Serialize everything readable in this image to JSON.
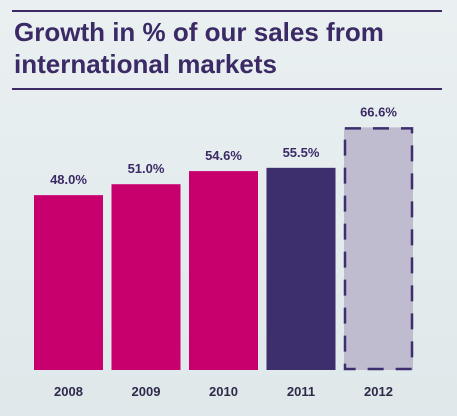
{
  "chart_data": {
    "type": "bar",
    "title": "Growth in % of our sales from international markets",
    "categories": [
      "2008",
      "2009",
      "2010",
      "2011",
      "2012"
    ],
    "values": [
      48.0,
      51.0,
      54.6,
      55.5,
      66.6
    ],
    "value_labels": [
      "48.0%",
      "51.0%",
      "54.6%",
      "55.5%",
      "66.6%"
    ],
    "bar_colors": [
      "#c8006e",
      "#c8006e",
      "#c8006e",
      "#3d2e6e",
      "#c0bccf"
    ],
    "dashed_border_color": "#3d2e6e",
    "xlabel": "",
    "ylabel": "",
    "ylim": [
      0,
      70
    ],
    "grid": false,
    "legend": "none"
  }
}
